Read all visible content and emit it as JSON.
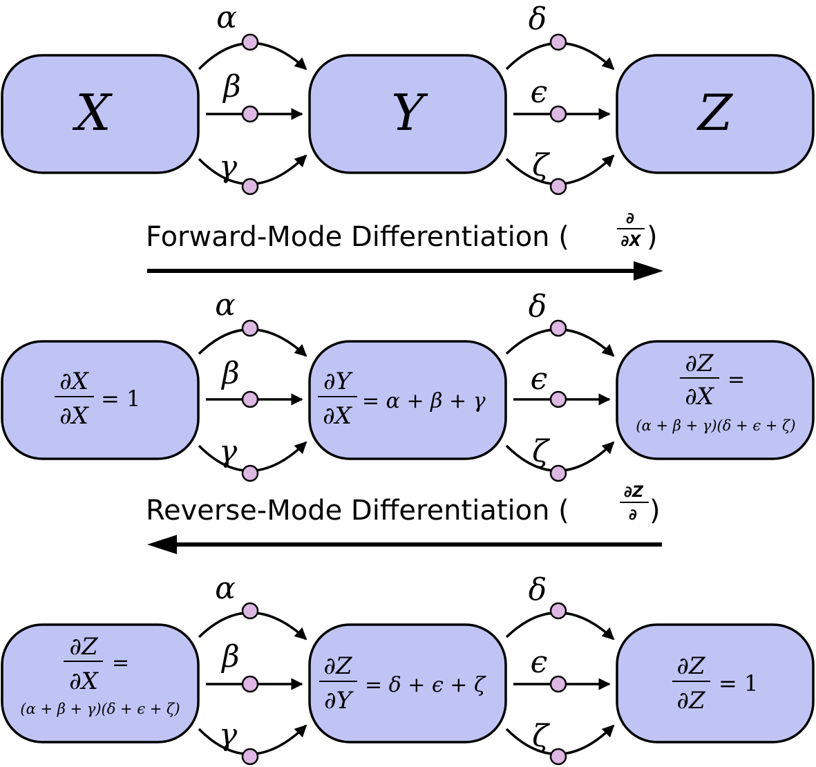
{
  "diagram": {
    "colors": {
      "node_fill": "#c0c4f5",
      "dot_fill": "#ddb8e3",
      "stroke": "#000000"
    },
    "edge_labels": {
      "xy": [
        "α",
        "β",
        "γ"
      ],
      "yz": [
        "δ",
        "ϵ",
        "ζ"
      ]
    },
    "panel1": {
      "nodes": [
        "X",
        "Y",
        "Z"
      ]
    },
    "forward": {
      "caption": "Forward-Mode Differentiation (",
      "frac_num": "∂",
      "frac_den": "∂X",
      "close": ")",
      "direction": "right"
    },
    "panel2": {
      "x_node": {
        "num": "∂X",
        "den": "∂X",
        "rhs": "= 1"
      },
      "y_node": {
        "num": "∂Y",
        "den": "∂X",
        "rhs": "= α + β + γ"
      },
      "z_node": {
        "num": "∂Z",
        "den": "∂X",
        "eq": "=",
        "expr": "(α + β + γ)(δ + ϵ + ζ)"
      }
    },
    "reverse": {
      "caption": "Reverse-Mode Differentiation (",
      "frac_num": "∂Z",
      "frac_den": "∂",
      "close": ")",
      "direction": "left"
    },
    "panel3": {
      "x_node": {
        "num": "∂Z",
        "den": "∂X",
        "eq": "=",
        "expr": "(α + β + γ)(δ + ϵ + ζ)"
      },
      "y_node": {
        "num": "∂Z",
        "den": "∂Y",
        "rhs": "= δ + ϵ + ζ"
      },
      "z_node": {
        "num": "∂Z",
        "den": "∂Z",
        "rhs": "= 1"
      }
    }
  }
}
